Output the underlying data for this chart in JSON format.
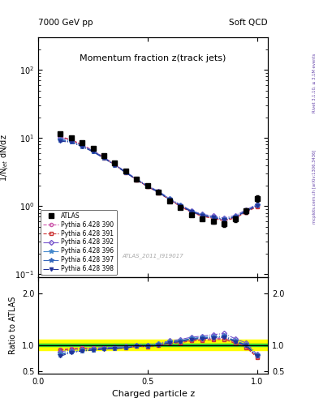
{
  "title_main": "Momentum fraction z(track jets)",
  "header_left": "7000 GeV pp",
  "header_right": "Soft QCD",
  "watermark": "ATLAS_2011_I919017",
  "right_label_top": "Rivet 3.1.10, ≥ 3.1M events",
  "right_label_bot": "mcplots.cern.ch [arXiv:1306.3436]",
  "ylabel_main": "1/N$_{jet}$ dN/dz",
  "ylabel_ratio": "Ratio to ATLAS",
  "xlabel": "Charged particle z",
  "xlim": [
    0.0,
    1.05
  ],
  "ylim_main_log": [
    0.09,
    300
  ],
  "ylim_ratio": [
    0.45,
    2.3
  ],
  "z_values": [
    0.1,
    0.15,
    0.2,
    0.25,
    0.3,
    0.35,
    0.4,
    0.45,
    0.5,
    0.55,
    0.6,
    0.65,
    0.7,
    0.75,
    0.8,
    0.85,
    0.9,
    0.95,
    1.0
  ],
  "atlas_y": [
    11.5,
    10.2,
    8.5,
    7.0,
    5.5,
    4.3,
    3.3,
    2.5,
    2.0,
    1.6,
    1.2,
    0.95,
    0.75,
    0.65,
    0.6,
    0.55,
    0.65,
    0.85,
    1.3
  ],
  "atlas_yerr": [
    0.4,
    0.3,
    0.25,
    0.2,
    0.15,
    0.12,
    0.1,
    0.08,
    0.07,
    0.06,
    0.05,
    0.04,
    0.04,
    0.04,
    0.04,
    0.05,
    0.06,
    0.08,
    0.15
  ],
  "green_band": [
    0.97,
    1.03
  ],
  "yellow_band": [
    0.9,
    1.1
  ],
  "series": [
    {
      "label": "Pythia 6.428 390",
      "color": "#cc55aa",
      "linestyle": "--",
      "marker": "o",
      "markersize": 3,
      "fillstyle": "none",
      "y_main": [
        10.5,
        9.5,
        8.0,
        6.6,
        5.2,
        4.1,
        3.15,
        2.45,
        1.95,
        1.6,
        1.25,
        1.0,
        0.82,
        0.72,
        0.67,
        0.62,
        0.68,
        0.82,
        1.0
      ],
      "y_ratio": [
        0.91,
        0.93,
        0.94,
        0.94,
        0.95,
        0.95,
        0.955,
        0.98,
        0.975,
        1.0,
        1.04,
        1.05,
        1.09,
        1.11,
        1.12,
        1.13,
        1.05,
        0.965,
        0.77
      ]
    },
    {
      "label": "Pythia 6.428 391",
      "color": "#cc3333",
      "linestyle": "--",
      "marker": "s",
      "markersize": 3,
      "fillstyle": "none",
      "y_main": [
        10.4,
        9.4,
        7.9,
        6.5,
        5.15,
        4.05,
        3.12,
        2.43,
        1.93,
        1.58,
        1.24,
        0.99,
        0.81,
        0.71,
        0.66,
        0.61,
        0.67,
        0.81,
        0.99
      ],
      "y_ratio": [
        0.9,
        0.92,
        0.93,
        0.93,
        0.94,
        0.94,
        0.945,
        0.972,
        0.965,
        0.988,
        1.033,
        1.042,
        1.08,
        1.092,
        1.1,
        1.109,
        1.031,
        0.953,
        0.762
      ]
    },
    {
      "label": "Pythia 6.428 392",
      "color": "#7755cc",
      "linestyle": "-.",
      "marker": "D",
      "markersize": 3,
      "fillstyle": "none",
      "y_main": [
        10.0,
        9.2,
        7.8,
        6.5,
        5.2,
        4.1,
        3.2,
        2.5,
        2.0,
        1.65,
        1.3,
        1.05,
        0.86,
        0.76,
        0.72,
        0.67,
        0.73,
        0.88,
        1.07
      ],
      "y_ratio": [
        0.87,
        0.9,
        0.92,
        0.93,
        0.95,
        0.955,
        0.97,
        1.0,
        1.0,
        1.03,
        1.08,
        1.105,
        1.15,
        1.17,
        1.2,
        1.22,
        1.12,
        1.04,
        0.82
      ]
    },
    {
      "label": "Pythia 6.428 396",
      "color": "#4488cc",
      "linestyle": "-.",
      "marker": "*",
      "markersize": 4,
      "fillstyle": "full",
      "y_main": [
        9.5,
        8.9,
        7.6,
        6.4,
        5.1,
        4.05,
        3.15,
        2.48,
        1.98,
        1.63,
        1.28,
        1.03,
        0.845,
        0.745,
        0.695,
        0.645,
        0.705,
        0.855,
        1.04
      ],
      "y_ratio": [
        0.83,
        0.87,
        0.895,
        0.914,
        0.927,
        0.942,
        0.955,
        0.992,
        0.99,
        1.019,
        1.067,
        1.084,
        1.127,
        1.146,
        1.158,
        1.173,
        1.085,
        1.006,
        0.8
      ]
    },
    {
      "label": "Pythia 6.428 397",
      "color": "#3366bb",
      "linestyle": "-.",
      "marker": "*",
      "markersize": 4,
      "fillstyle": "full",
      "y_main": [
        9.3,
        8.8,
        7.55,
        6.35,
        5.08,
        4.02,
        3.12,
        2.46,
        1.96,
        1.61,
        1.27,
        1.02,
        0.84,
        0.74,
        0.69,
        0.64,
        0.7,
        0.85,
        1.03
      ],
      "y_ratio": [
        0.81,
        0.863,
        0.888,
        0.907,
        0.924,
        0.935,
        0.945,
        0.984,
        0.98,
        1.006,
        1.058,
        1.074,
        1.12,
        1.138,
        1.15,
        1.164,
        1.077,
        1.0,
        0.792
      ]
    },
    {
      "label": "Pythia 6.428 398",
      "color": "#223399",
      "linestyle": "-.",
      "marker": "v",
      "markersize": 3,
      "fillstyle": "full",
      "y_main": [
        9.0,
        8.7,
        7.5,
        6.3,
        5.05,
        4.0,
        3.1,
        2.44,
        1.94,
        1.59,
        1.25,
        1.01,
        0.83,
        0.73,
        0.68,
        0.63,
        0.69,
        0.84,
        1.02
      ],
      "y_ratio": [
        0.783,
        0.853,
        0.882,
        0.9,
        0.918,
        0.93,
        0.939,
        0.976,
        0.97,
        0.994,
        1.042,
        1.063,
        1.107,
        1.123,
        1.133,
        1.149,
        1.062,
        0.988,
        0.785
      ]
    }
  ]
}
